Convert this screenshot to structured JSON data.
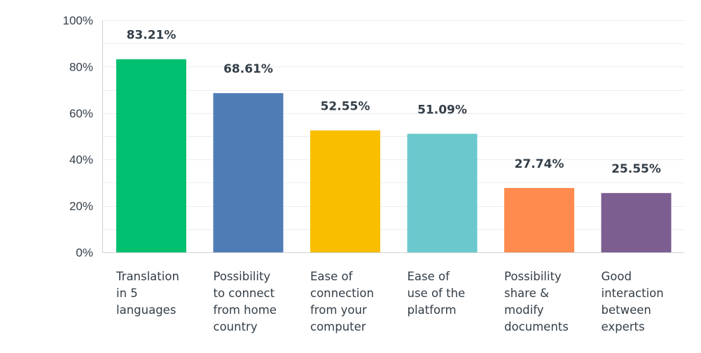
{
  "chart_data": {
    "type": "bar",
    "categories": [
      [
        "Translation",
        "in 5",
        "languages"
      ],
      [
        "Possibility",
        "to connect",
        "from home",
        "country"
      ],
      [
        "Ease of",
        "connection",
        "from your",
        "computer"
      ],
      [
        "Ease of",
        "use of the",
        "platform"
      ],
      [
        "Possibility",
        "share &",
        "modify",
        "documents"
      ],
      [
        "Good",
        "interaction",
        "between",
        "experts"
      ]
    ],
    "values": [
      83.21,
      68.61,
      52.55,
      51.09,
      27.74,
      25.55
    ],
    "value_labels": [
      "83.21%",
      "68.61%",
      "52.55%",
      "51.09%",
      "27.74%",
      "25.55%"
    ],
    "colors": [
      "#00bf6f",
      "#507cb6",
      "#f9be00",
      "#6bc8cd",
      "#ff8b4f",
      "#7d5e90"
    ],
    "ylim": [
      0,
      100
    ],
    "yticks": [
      0,
      20,
      40,
      60,
      80,
      100
    ],
    "ytick_labels": [
      "0%",
      "20%",
      "40%",
      "60%",
      "80%",
      "100%"
    ],
    "grid": true,
    "title": "",
    "xlabel": "",
    "ylabel": ""
  }
}
